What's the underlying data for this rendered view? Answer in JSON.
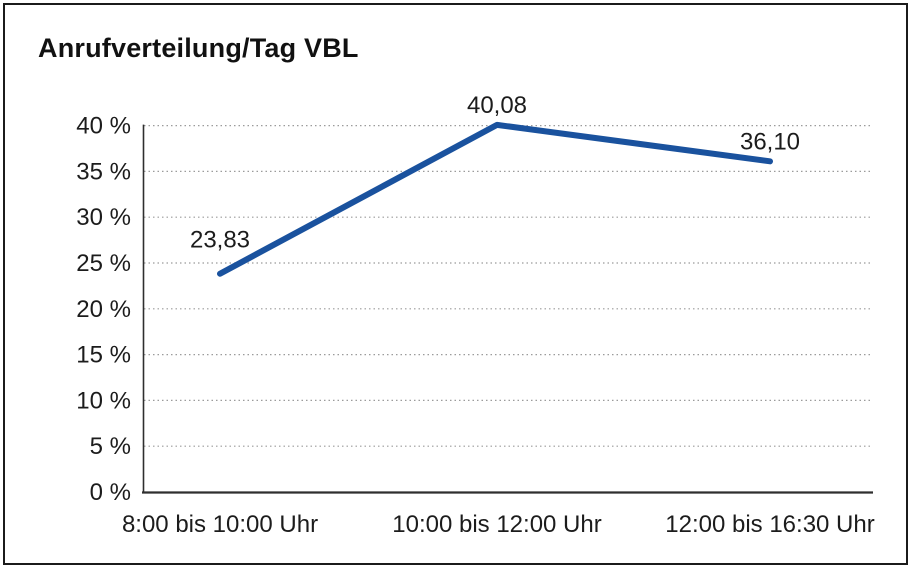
{
  "chart_data": {
    "type": "line",
    "title": "Anrufverteilung/Tag VBL",
    "categories": [
      "8:00 bis 10:00 Uhr",
      "10:00 bis 12:00 Uhr",
      "12:00 bis 16:30 Uhr"
    ],
    "values": [
      23.83,
      40.08,
      36.1
    ],
    "value_labels": [
      "23,83",
      "40,08",
      "36,10"
    ],
    "xlabel": "",
    "ylabel": "",
    "ylim": [
      0,
      40
    ],
    "yticks": [
      0,
      5,
      10,
      15,
      20,
      25,
      30,
      35,
      40
    ],
    "ytick_labels": [
      "0 %",
      "5 %",
      "10 %",
      "15 %",
      "20 %",
      "25 %",
      "30 %",
      "35 %",
      "40 %"
    ],
    "grid": "horizontal-dotted",
    "legend": "none",
    "line_color": "#1a529e"
  },
  "colors": {
    "line": "#1a529e",
    "grid": "#9b9b9b",
    "axis": "#2f2f2f",
    "frame": "#1b1b1b",
    "text": "#1c1c1c",
    "background": "#ffffff"
  }
}
